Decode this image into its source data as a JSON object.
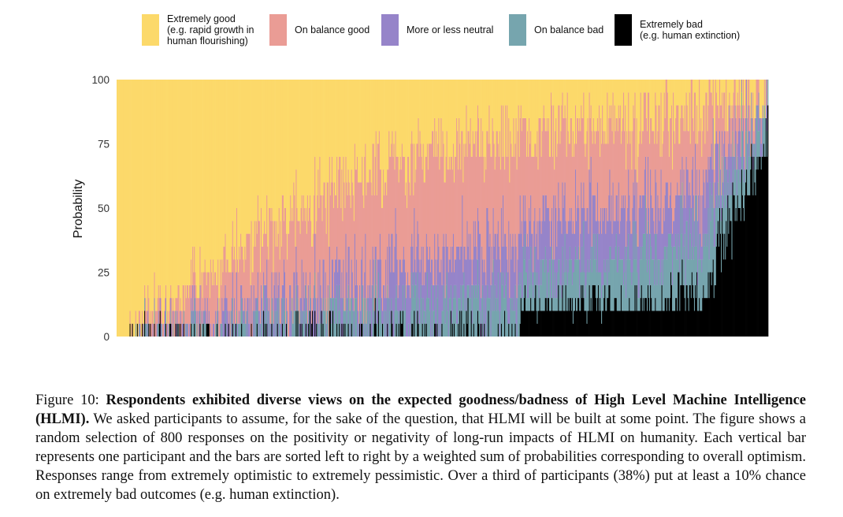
{
  "legend": [
    {
      "label": "Extremely good\n(e.g. rapid growth in\nhuman flourishing)",
      "color": "#FCD96A"
    },
    {
      "label": "On balance good",
      "color": "#EA9C95"
    },
    {
      "label": "More or less neutral",
      "color": "#9684C9"
    },
    {
      "label": "On balance bad",
      "color": "#76A5AE"
    },
    {
      "label": "Extremely bad\n(e.g. human extinction)",
      "color": "#000000"
    }
  ],
  "chart_data": {
    "type": "bar",
    "stacked": true,
    "ylabel": "Probability",
    "xlabel": "",
    "ylim": [
      0,
      100
    ],
    "yticks": [
      0,
      25,
      50,
      75,
      100
    ],
    "n_bars": 800,
    "series_order": [
      "Extremely bad",
      "On balance bad",
      "More or less neutral",
      "On balance good",
      "Extremely good"
    ],
    "colors": {
      "Extremely good": "#FCD96A",
      "On balance good": "#EA9C95",
      "More or less neutral": "#9684C9",
      "On balance bad": "#76A5AE",
      "Extremely bad": "#000000"
    },
    "approximate_profile_note": "bars sorted by optimism",
    "profile": {
      "fraction_extremely_bad_at_least_10pct": 0.38,
      "anchor_positions": [
        0.0,
        0.1,
        0.2,
        0.3,
        0.4,
        0.5,
        0.6,
        0.7,
        0.8,
        0.9,
        1.0
      ],
      "extremely_bad_mean": [
        0,
        0,
        1,
        2,
        4,
        5,
        6,
        8,
        10,
        15,
        80
      ],
      "on_balance_bad_mean": [
        0,
        1,
        3,
        5,
        8,
        10,
        13,
        15,
        18,
        22,
        10
      ],
      "neutral_mean": [
        0,
        2,
        6,
        10,
        15,
        18,
        20,
        22,
        22,
        20,
        5
      ],
      "on_balance_good_mean": [
        0,
        10,
        25,
        35,
        40,
        40,
        38,
        35,
        32,
        28,
        3
      ],
      "extremely_good_mean": [
        100,
        87,
        65,
        48,
        33,
        27,
        23,
        20,
        18,
        15,
        2
      ]
    }
  },
  "caption": {
    "label": "Figure 10:",
    "title": "Respondents exhibited diverse views on the expected goodness/badness of High Level Machine Intelligence (HLMI).",
    "body": "We asked participants to assume, for the sake of the question, that HLMI will be built at some point. The figure shows a random selection of 800 responses on the positivity or negativity of long-run impacts of HLMI on humanity. Each vertical bar represents one participant and the bars are sorted left to right by a weighted sum of probabilities corresponding to overall optimism. Responses range from extremely optimistic to extremely pessimistic. Over a third of participants (38%) put at least a 10% chance on extremely bad outcomes (e.g. human extinction)."
  }
}
